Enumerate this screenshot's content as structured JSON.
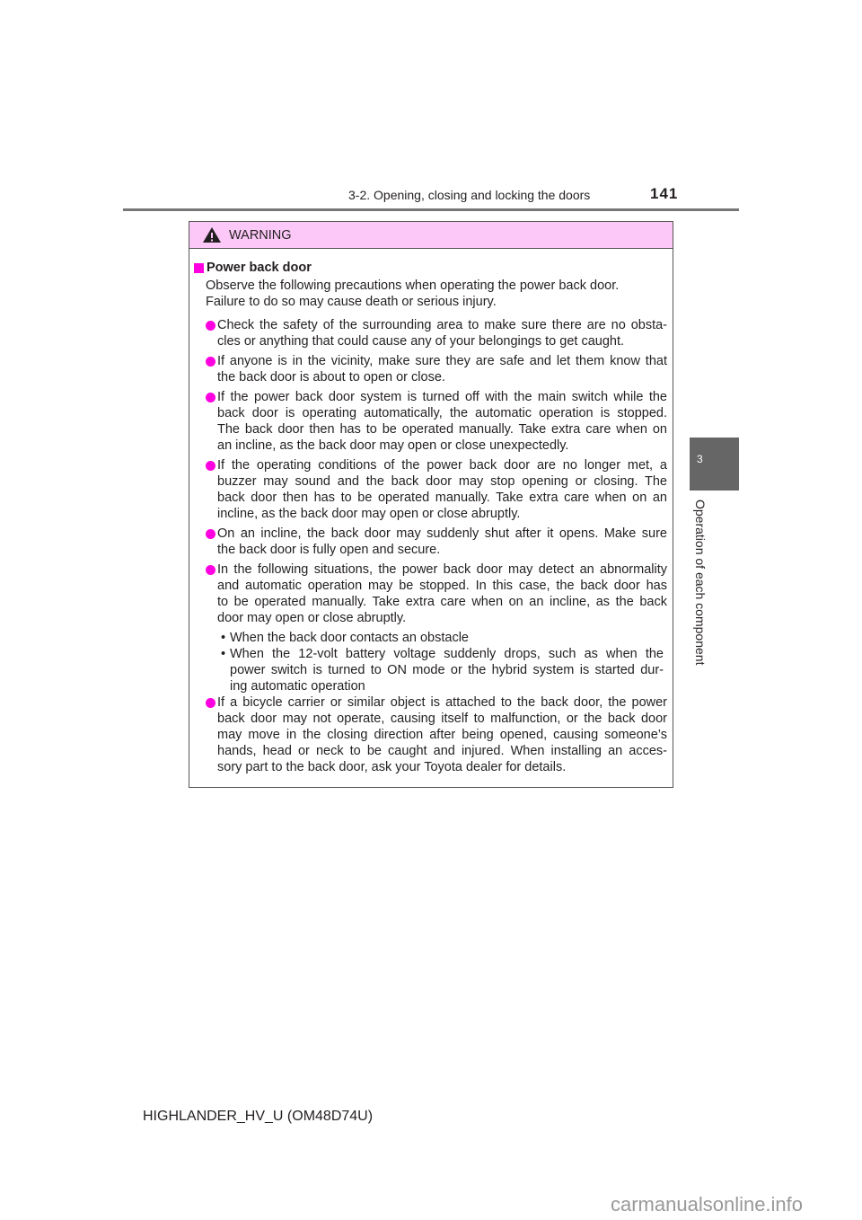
{
  "header": {
    "section": "3-2. Opening, closing and locking the doors",
    "page": "141"
  },
  "side_tab": {
    "number": "3",
    "label": "Operation of each component"
  },
  "warning": {
    "title": "WARNING",
    "section_title": "Power back door",
    "intro": [
      "Observe the following precautions when operating the power back door.",
      "Failure to do so may cause death or serious injury."
    ],
    "items": [
      {
        "lines": [
          "Check the safety of the surrounding area to make sure there are no obsta-",
          "cles or anything that could cause any of your belongings to get caught."
        ]
      },
      {
        "lines": [
          "If anyone is in the vicinity, make sure they are safe and let them know that",
          "the back door is about to open or close."
        ]
      },
      {
        "lines": [
          "If the power back door system is turned off with the main switch while the",
          "back door is operating automatically, the automatic operation is stopped.",
          "The back door then has to be operated manually. Take extra care when on",
          "an incline, as the back door may open or close unexpectedly."
        ]
      },
      {
        "lines": [
          "If the operating conditions of the power back door are no longer met, a",
          "buzzer may sound and the back door may stop opening or closing. The",
          "back door then has to be operated manually. Take extra care when on an",
          "incline, as the back door may open or close abruptly."
        ]
      },
      {
        "lines": [
          "On an incline, the back door may suddenly shut after it opens. Make sure",
          "the back door is fully open and secure."
        ]
      },
      {
        "lines": [
          "In the following situations, the power back door may detect an abnormality",
          "and automatic operation may be stopped. In this case, the back door has",
          "to be operated manually. Take extra care when on an incline, as the back",
          "door may open or close abruptly."
        ],
        "sub": [
          {
            "lines": [
              "When the back door contacts an obstacle"
            ]
          },
          {
            "lines": [
              "When the 12-volt battery voltage suddenly drops, such as when the",
              "power switch is turned to ON mode or the hybrid system is started dur-",
              "ing automatic operation"
            ]
          }
        ]
      },
      {
        "lines": [
          "If a bicycle carrier or similar object is attached to the back door, the power",
          "back door may not operate, causing itself to malfunction, or the back door",
          "may move in the closing direction after being opened, causing someone’s",
          "hands, head or neck to be caught and injured. When installing an acces-",
          "sory part to the back door, ask your Toyota dealer for details."
        ]
      }
    ]
  },
  "footer": "HIGHLANDER_HV_U (OM48D74U)",
  "watermark": "carmanualsonline.info",
  "colors": {
    "bullet": "#ff00e0",
    "warning_bg": "#fcc8f8",
    "tab": "#666666"
  }
}
